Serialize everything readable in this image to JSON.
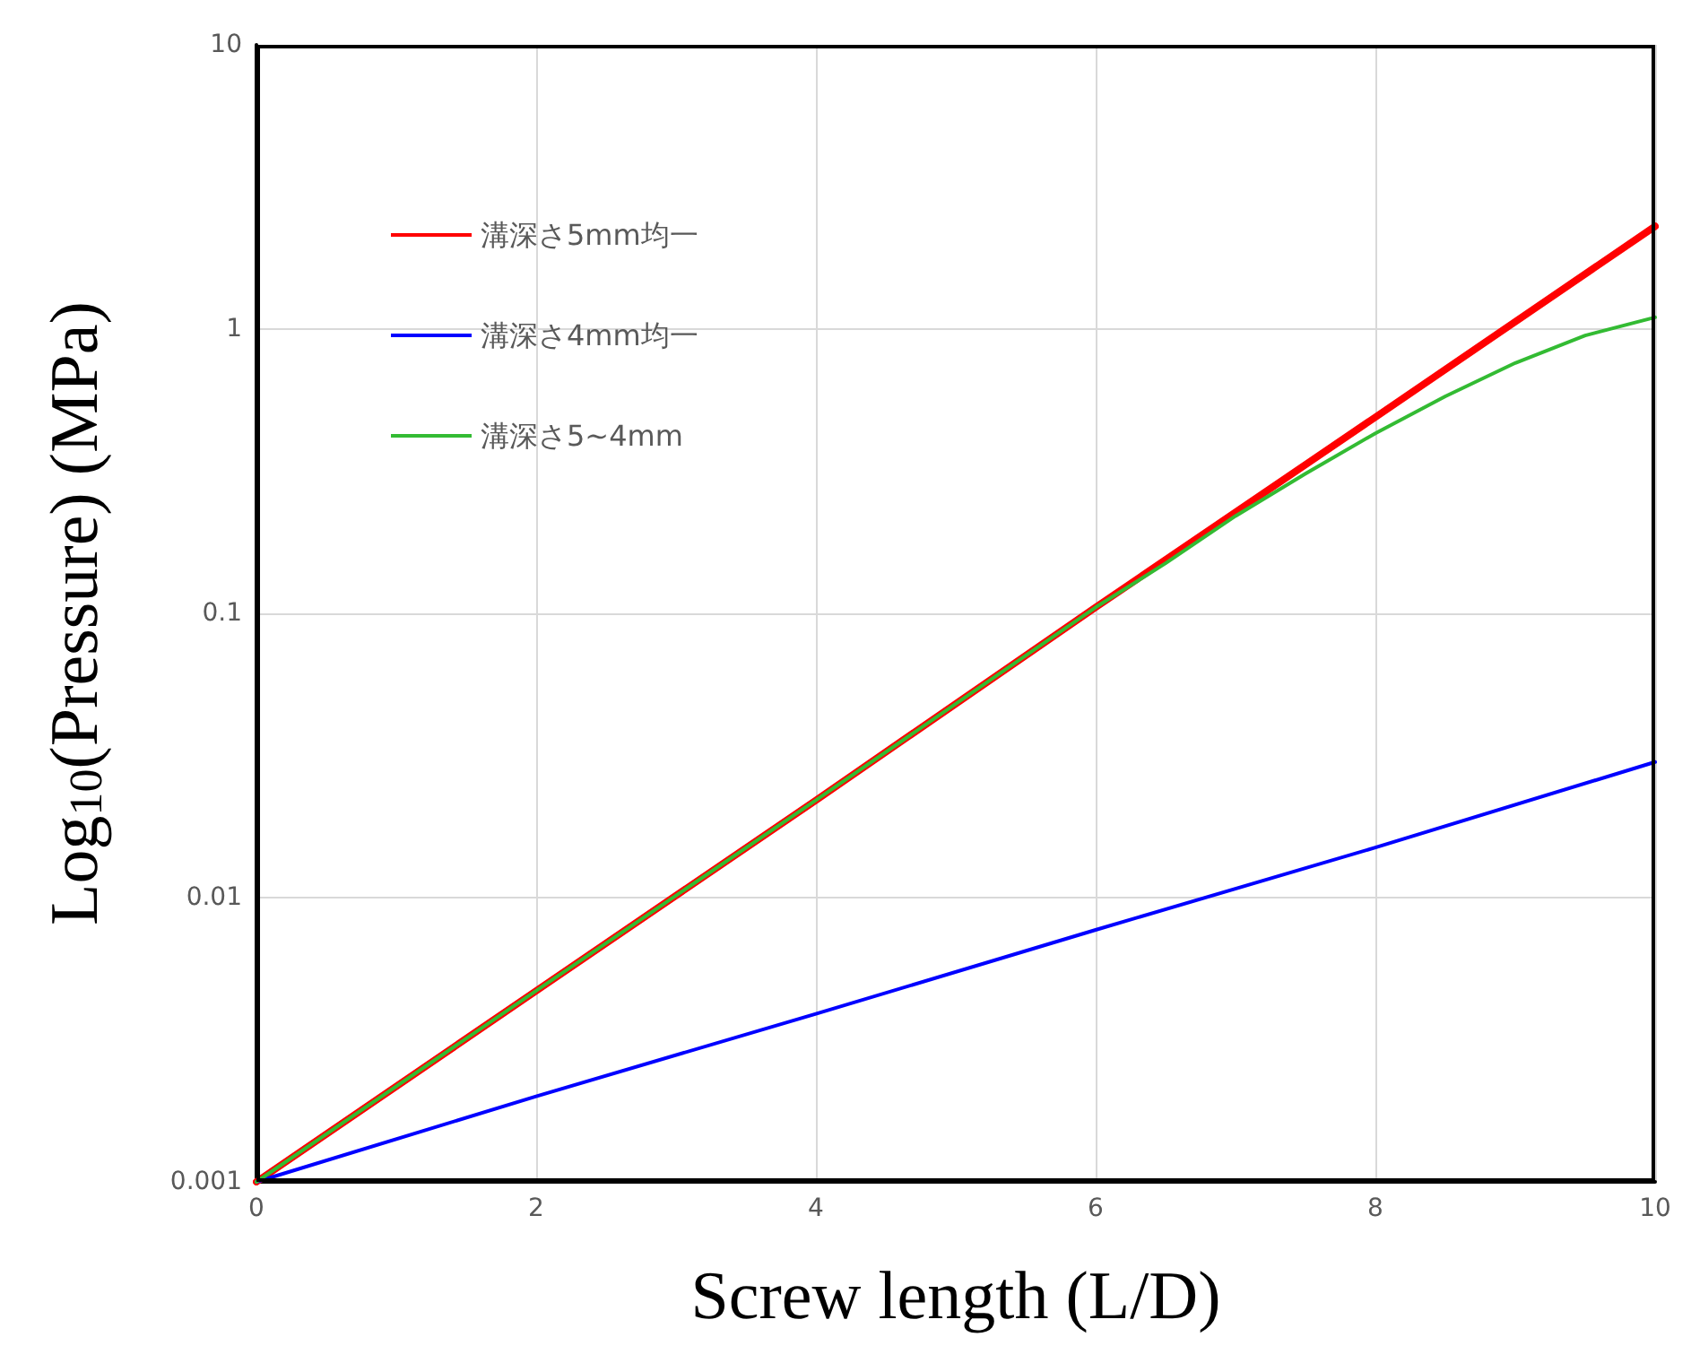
{
  "chart_data": {
    "type": "line",
    "xlabel": "Screw length (L/D)",
    "ylabel": "Log$_{10}$(Pressure) (MPa)",
    "log": "y",
    "grid": true,
    "legend": "top left",
    "marker": "none",
    "line_style": "solid",
    "xlim": [
      0,
      10
    ],
    "xticks": [
      0,
      2,
      4,
      6,
      8,
      10
    ],
    "ylim": [
      0.001,
      10
    ],
    "yticks": [
      0.001,
      0.01,
      0.1,
      1,
      10
    ],
    "series": [
      {
        "name": "溝深さ5mm均一",
        "color": "#ff0000",
        "x": [
          0,
          2,
          4,
          6,
          8,
          10
        ],
        "values": [
          0.001,
          0.0047,
          0.022,
          0.105,
          0.49,
          2.3
        ]
      },
      {
        "name": "溝深さ4mm均一",
        "color": "#0000ff",
        "x": [
          0,
          2,
          4,
          6,
          8,
          10
        ],
        "values": [
          0.001,
          0.002,
          0.0039,
          0.0077,
          0.015,
          0.03
        ]
      },
      {
        "name": "溝深さ5~4mm",
        "color": "#33bb33",
        "x": [
          0,
          2,
          4,
          6,
          6.5,
          7,
          7.5,
          8,
          8.5,
          9,
          9.5,
          10
        ],
        "values": [
          0.001,
          0.0047,
          0.022,
          0.105,
          0.15,
          0.22,
          0.31,
          0.43,
          0.58,
          0.76,
          0.95,
          1.1
        ]
      }
    ]
  }
}
